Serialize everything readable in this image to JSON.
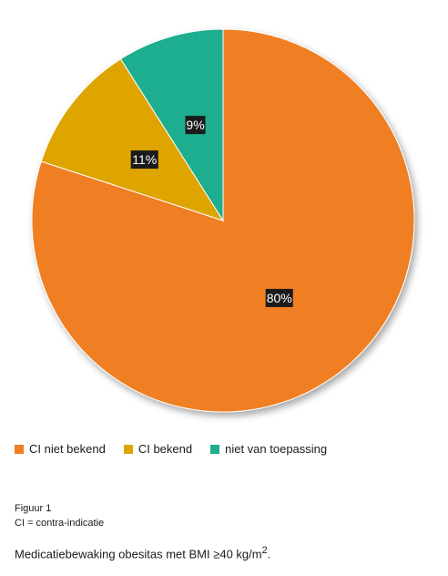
{
  "chart_data": {
    "type": "pie",
    "categories": [
      "CI niet bekend",
      "CI bekend",
      "niet van toepassing"
    ],
    "values": [
      80,
      11,
      9
    ],
    "labels": [
      "80%",
      "11%",
      "9%"
    ],
    "colors": [
      "#ef7f22",
      "#dea405",
      "#1fae8e"
    ],
    "legend_position": "bottom-left"
  },
  "legend": {
    "items": [
      {
        "label": "CI niet bekend",
        "color": "#ef7f22"
      },
      {
        "label": "CI bekend",
        "color": "#dea405"
      },
      {
        "label": "niet van toepassing",
        "color": "#1fae8e"
      }
    ]
  },
  "figure_label": "Figuur 1",
  "footnote": "CI = contra-indicatie",
  "caption": {
    "text": "Medicatiebewaking obesitas met BMI ≥40 kg/m",
    "superscript": "2",
    "end": "."
  }
}
